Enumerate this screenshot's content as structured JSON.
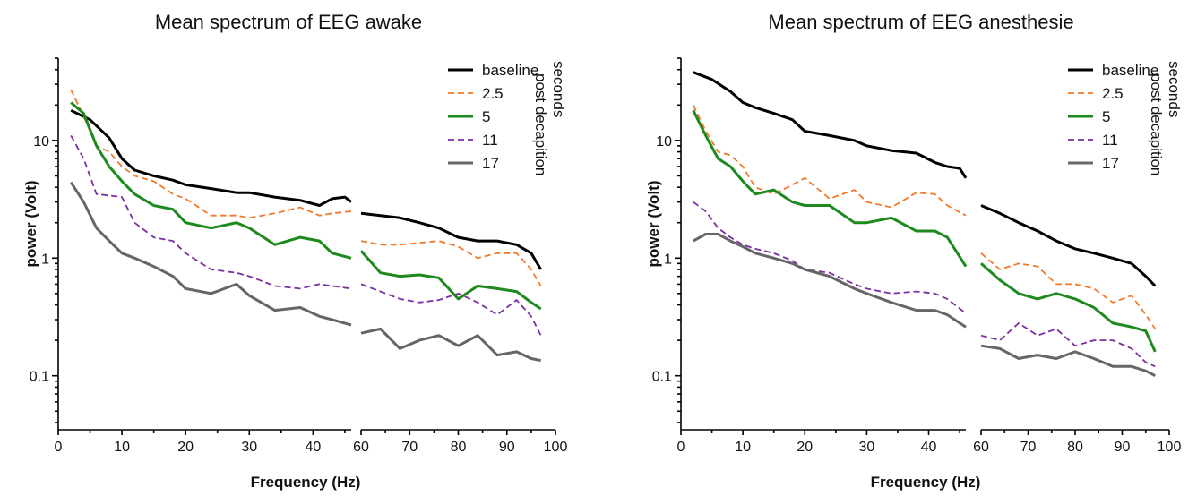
{
  "chart_data": [
    {
      "type": "line",
      "title": "Mean spectrum of EEG awake",
      "xlabel": "Frequency (Hz)",
      "ylabel": "power (Volt)",
      "yscale": "log",
      "ylim": [
        0.04,
        50
      ],
      "x_segments": [
        [
          0,
          46
        ],
        [
          60,
          100
        ]
      ],
      "x_ticks": [
        "0",
        "10",
        "20",
        "30",
        "40",
        "60",
        "70",
        "80",
        "90",
        "100"
      ],
      "y_ticks": [
        "0.1",
        "1",
        "10"
      ],
      "legend_title": "seconds post decapition",
      "legend_position": "top-right",
      "series": [
        {
          "name": "baseline",
          "color": "#000000",
          "dash": "solid",
          "x": [
            2,
            5,
            8,
            10,
            12,
            15,
            18,
            20,
            24,
            28,
            30,
            34,
            38,
            41,
            43,
            45,
            46,
            60,
            64,
            68,
            72,
            76,
            80,
            84,
            88,
            92,
            95,
            97
          ],
          "y": [
            18,
            15,
            10.5,
            7,
            5.6,
            5,
            4.6,
            4.2,
            3.9,
            3.6,
            3.6,
            3.3,
            3.1,
            2.8,
            3.2,
            3.3,
            3.0,
            2.4,
            2.3,
            2.2,
            2.0,
            1.8,
            1.5,
            1.4,
            1.4,
            1.3,
            1.1,
            0.8
          ]
        },
        {
          "name": "2.5",
          "color": "#f07a2a",
          "dash": "dashed",
          "x": [
            2,
            4,
            6,
            8,
            10,
            12,
            15,
            18,
            20,
            24,
            28,
            30,
            34,
            38,
            41,
            43,
            46,
            60,
            64,
            68,
            72,
            76,
            80,
            84,
            88,
            92,
            95,
            97
          ],
          "y": [
            27,
            16,
            9,
            8,
            6,
            5,
            4.5,
            3.5,
            3.2,
            2.3,
            2.3,
            2.2,
            2.4,
            2.7,
            2.3,
            2.4,
            2.5,
            1.4,
            1.3,
            1.3,
            1.35,
            1.4,
            1.25,
            1.0,
            1.1,
            1.1,
            0.8,
            0.58
          ]
        },
        {
          "name": "5",
          "color": "#1e8a1e",
          "dash": "solid",
          "x": [
            2,
            4,
            6,
            8,
            10,
            12,
            15,
            18,
            20,
            24,
            28,
            30,
            34,
            38,
            41,
            43,
            46,
            60,
            64,
            68,
            72,
            76,
            80,
            84,
            88,
            92,
            95,
            97
          ],
          "y": [
            21,
            17,
            9,
            6,
            4.5,
            3.5,
            2.8,
            2.6,
            2.0,
            1.8,
            2.0,
            1.8,
            1.3,
            1.5,
            1.4,
            1.1,
            1.0,
            1.15,
            0.75,
            0.7,
            0.72,
            0.68,
            0.45,
            0.58,
            0.55,
            0.52,
            0.42,
            0.37
          ]
        },
        {
          "name": "11",
          "color": "#7b2fa0",
          "dash": "dashed",
          "x": [
            2,
            4,
            6,
            8,
            10,
            12,
            15,
            18,
            20,
            24,
            28,
            30,
            34,
            38,
            41,
            43,
            46,
            60,
            64,
            68,
            72,
            76,
            80,
            84,
            88,
            92,
            95,
            97
          ],
          "y": [
            11,
            7,
            3.5,
            3.4,
            3.3,
            2.0,
            1.5,
            1.4,
            1.1,
            0.8,
            0.75,
            0.7,
            0.58,
            0.55,
            0.6,
            0.58,
            0.55,
            0.6,
            0.52,
            0.45,
            0.42,
            0.44,
            0.5,
            0.42,
            0.33,
            0.44,
            0.32,
            0.22
          ]
        },
        {
          "name": "17",
          "color": "#666666",
          "dash": "solid",
          "x": [
            2,
            4,
            6,
            8,
            10,
            12,
            15,
            18,
            20,
            24,
            28,
            30,
            34,
            38,
            41,
            43,
            46,
            60,
            64,
            68,
            72,
            76,
            80,
            84,
            88,
            92,
            95,
            97
          ],
          "y": [
            4.4,
            3,
            1.8,
            1.4,
            1.1,
            1.0,
            0.85,
            0.7,
            0.55,
            0.5,
            0.6,
            0.48,
            0.36,
            0.38,
            0.32,
            0.3,
            0.27,
            0.23,
            0.25,
            0.17,
            0.2,
            0.22,
            0.18,
            0.22,
            0.15,
            0.16,
            0.14,
            0.135
          ]
        }
      ]
    },
    {
      "type": "line",
      "title": "Mean spectrum of EEG anesthesie",
      "xlabel": "Frequency (Hz)",
      "ylabel": "power (Volt)",
      "yscale": "log",
      "ylim": [
        0.04,
        50
      ],
      "x_segments": [
        [
          0,
          46
        ],
        [
          60,
          100
        ]
      ],
      "x_ticks": [
        "0",
        "10",
        "20",
        "30",
        "40",
        "60",
        "70",
        "80",
        "90",
        "100"
      ],
      "y_ticks": [
        "0.1",
        "1",
        "10"
      ],
      "legend_title": "seconds post decapition",
      "legend_position": "top-right",
      "series": [
        {
          "name": "baseline",
          "color": "#000000",
          "dash": "solid",
          "x": [
            2,
            5,
            8,
            10,
            12,
            15,
            18,
            20,
            24,
            28,
            30,
            34,
            38,
            41,
            43,
            45,
            46,
            60,
            64,
            68,
            72,
            76,
            80,
            84,
            88,
            92,
            95,
            97
          ],
          "y": [
            38,
            33,
            26,
            21,
            19,
            17,
            15,
            12,
            11,
            10,
            9,
            8.2,
            7.8,
            6.5,
            6,
            5.8,
            4.8,
            2.8,
            2.4,
            2.0,
            1.7,
            1.4,
            1.2,
            1.1,
            1.0,
            0.9,
            0.7,
            0.58
          ]
        },
        {
          "name": "2.5",
          "color": "#f07a2a",
          "dash": "dashed",
          "x": [
            2,
            4,
            6,
            8,
            10,
            12,
            15,
            18,
            20,
            24,
            28,
            30,
            34,
            38,
            41,
            43,
            46,
            60,
            64,
            68,
            72,
            76,
            80,
            84,
            88,
            92,
            95,
            97
          ],
          "y": [
            20,
            12,
            8,
            7.5,
            6,
            4,
            3.5,
            4.2,
            4.8,
            3.2,
            3.8,
            3.0,
            2.7,
            3.6,
            3.5,
            2.8,
            2.3,
            1.1,
            0.8,
            0.9,
            0.85,
            0.6,
            0.6,
            0.55,
            0.42,
            0.48,
            0.33,
            0.25
          ]
        },
        {
          "name": "5",
          "color": "#1e8a1e",
          "dash": "solid",
          "x": [
            2,
            4,
            6,
            8,
            10,
            12,
            15,
            18,
            20,
            24,
            28,
            30,
            34,
            38,
            41,
            43,
            46,
            60,
            64,
            68,
            72,
            76,
            80,
            84,
            88,
            92,
            95,
            97
          ],
          "y": [
            18,
            11,
            7,
            6,
            4.5,
            3.5,
            3.8,
            3.0,
            2.8,
            2.8,
            2.0,
            2.0,
            2.2,
            1.7,
            1.7,
            1.5,
            0.85,
            0.9,
            0.65,
            0.5,
            0.45,
            0.5,
            0.45,
            0.38,
            0.28,
            0.26,
            0.24,
            0.16
          ]
        },
        {
          "name": "11",
          "color": "#7b2fa0",
          "dash": "dashed",
          "x": [
            2,
            4,
            6,
            8,
            10,
            12,
            15,
            18,
            20,
            24,
            28,
            30,
            34,
            38,
            41,
            43,
            46,
            60,
            64,
            68,
            72,
            76,
            80,
            84,
            88,
            92,
            95,
            97
          ],
          "y": [
            3.0,
            2.5,
            1.8,
            1.5,
            1.3,
            1.2,
            1.1,
            0.95,
            0.8,
            0.75,
            0.6,
            0.55,
            0.5,
            0.52,
            0.5,
            0.45,
            0.34,
            0.22,
            0.2,
            0.28,
            0.22,
            0.25,
            0.18,
            0.2,
            0.2,
            0.17,
            0.13,
            0.12
          ]
        },
        {
          "name": "17",
          "color": "#666666",
          "dash": "solid",
          "x": [
            2,
            4,
            6,
            8,
            10,
            12,
            15,
            18,
            20,
            24,
            28,
            30,
            34,
            38,
            41,
            43,
            46,
            60,
            64,
            68,
            72,
            76,
            80,
            84,
            88,
            92,
            95,
            97
          ],
          "y": [
            1.4,
            1.6,
            1.6,
            1.4,
            1.25,
            1.1,
            1.0,
            0.9,
            0.8,
            0.7,
            0.55,
            0.5,
            0.42,
            0.36,
            0.36,
            0.33,
            0.26,
            0.18,
            0.17,
            0.14,
            0.15,
            0.14,
            0.16,
            0.14,
            0.12,
            0.12,
            0.11,
            0.1
          ]
        }
      ]
    }
  ]
}
